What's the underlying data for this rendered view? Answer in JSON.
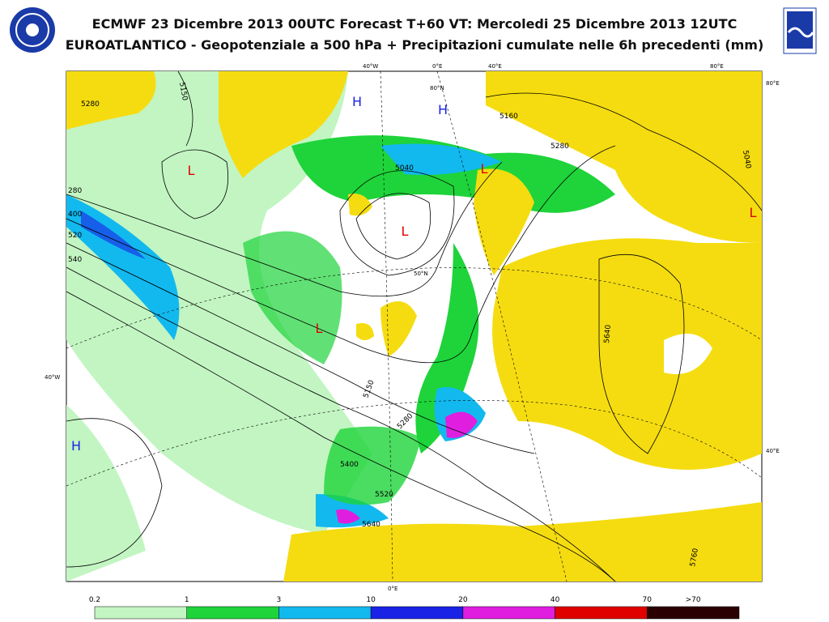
{
  "header": {
    "title_line1": "ECMWF 23 Dicembre 2013 00UTC Forecast T+60 VT: Mercoledi 25 Dicembre 2013 12UTC",
    "title_line2": "EUROATLANTICO - Geopotenziale a 500 hPa + Precipitazioni cumulate nelle 6h precedenti (mm)"
  },
  "map": {
    "pressure_centers": [
      "H",
      "H",
      "L",
      "L",
      "L",
      "L",
      "H",
      "L"
    ],
    "contour_labels": [
      "5150",
      "5280",
      "5160",
      "5280",
      "5040",
      "5040",
      "280",
      "400",
      "520",
      "540",
      "5150",
      "5280",
      "5400",
      "5520",
      "5640",
      "5640",
      "5760"
    ],
    "coordinate_labels": [
      "40°W",
      "0°E",
      "40°E",
      "80°E",
      "80°E",
      "80°N",
      "50°N",
      "40°W",
      "40°E",
      "0°E"
    ]
  },
  "legend": {
    "labels": [
      "0.2",
      "1",
      "3",
      "10",
      "20",
      "40",
      "70",
      ">70"
    ],
    "colors": [
      "#c2f5c2",
      "#1ed43a",
      "#12b9ee",
      "#1a22e6",
      "#e01ee0",
      "#e00000",
      "#2a0000"
    ]
  }
}
